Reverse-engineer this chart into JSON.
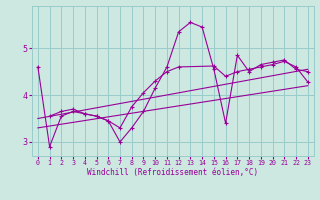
{
  "xlabel": "Windchill (Refroidissement éolien,°C)",
  "bg_color": "#cce8e0",
  "grid_color": "#99cccc",
  "line_color": "#990099",
  "xlim": [
    -0.5,
    23.5
  ],
  "ylim": [
    2.7,
    5.9
  ],
  "yticks": [
    3,
    4,
    5
  ],
  "xticks": [
    0,
    1,
    2,
    3,
    4,
    5,
    6,
    7,
    8,
    9,
    10,
    11,
    12,
    13,
    14,
    15,
    16,
    17,
    18,
    19,
    20,
    21,
    22,
    23
  ],
  "series0_x": [
    0,
    1,
    2,
    3,
    4,
    5,
    6,
    7,
    8,
    9,
    10,
    11,
    12,
    13,
    14,
    15,
    16,
    17,
    18,
    19,
    20,
    21,
    22,
    23
  ],
  "series0_y": [
    4.6,
    2.9,
    3.55,
    3.65,
    3.6,
    3.55,
    3.45,
    3.0,
    3.3,
    3.65,
    4.15,
    4.6,
    5.35,
    5.55,
    5.45,
    4.55,
    3.4,
    4.85,
    4.5,
    4.65,
    4.7,
    4.75,
    4.55,
    4.5
  ],
  "series1_x": [
    1,
    2,
    3,
    4,
    5,
    6,
    7,
    8,
    9,
    10,
    11,
    12,
    15,
    16,
    17,
    18,
    19,
    20,
    21,
    22,
    23
  ],
  "series1_y": [
    3.55,
    3.65,
    3.7,
    3.6,
    3.55,
    3.45,
    3.3,
    3.75,
    4.05,
    4.3,
    4.5,
    4.6,
    4.62,
    4.4,
    4.5,
    4.55,
    4.6,
    4.65,
    4.72,
    4.6,
    4.28
  ],
  "trend1_x": [
    0,
    23
  ],
  "trend1_y": [
    3.3,
    4.2
  ],
  "trend2_x": [
    0,
    23
  ],
  "trend2_y": [
    3.5,
    4.55
  ]
}
